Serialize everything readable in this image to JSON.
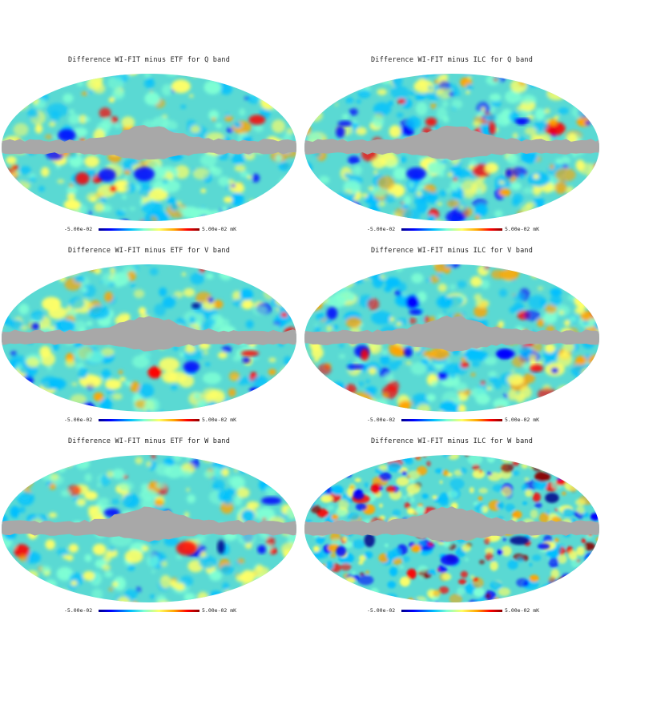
{
  "panels": [
    {
      "title": "Difference WI-FIT minus ETF for Q band",
      "cmin": "-5.00e-02",
      "cmax": "5.00e-02 mK"
    },
    {
      "title": "Difference WI-FIT minus ILC for Q band",
      "cmin": "-5.00e-02",
      "cmax": "5.00e-02 mK"
    },
    {
      "title": "Difference WI-FIT minus ETF for V band",
      "cmin": "-5.00e-02",
      "cmax": "5.00e-02 mK"
    },
    {
      "title": "Difference WI-FIT minus ILC for V band",
      "cmin": "-5.00e-02",
      "cmax": "5.00e-02 mK"
    },
    {
      "title": "Difference WI-FIT minus ETF for W band",
      "cmin": "-5.00e-02",
      "cmax": "5.00e-02 mK"
    },
    {
      "title": "Difference WI-FIT minus ILC for W band",
      "cmin": "-5.00e-02",
      "cmax": "5.00e-02 mK"
    }
  ],
  "colors": {
    "masked": "#a8a8a8",
    "base": "#5ad9d3",
    "colormap": [
      "#00008b",
      "#0000ff",
      "#00bfff",
      "#7fffd4",
      "#ffff66",
      "#ffa500",
      "#ff0000",
      "#8b0000"
    ]
  }
}
